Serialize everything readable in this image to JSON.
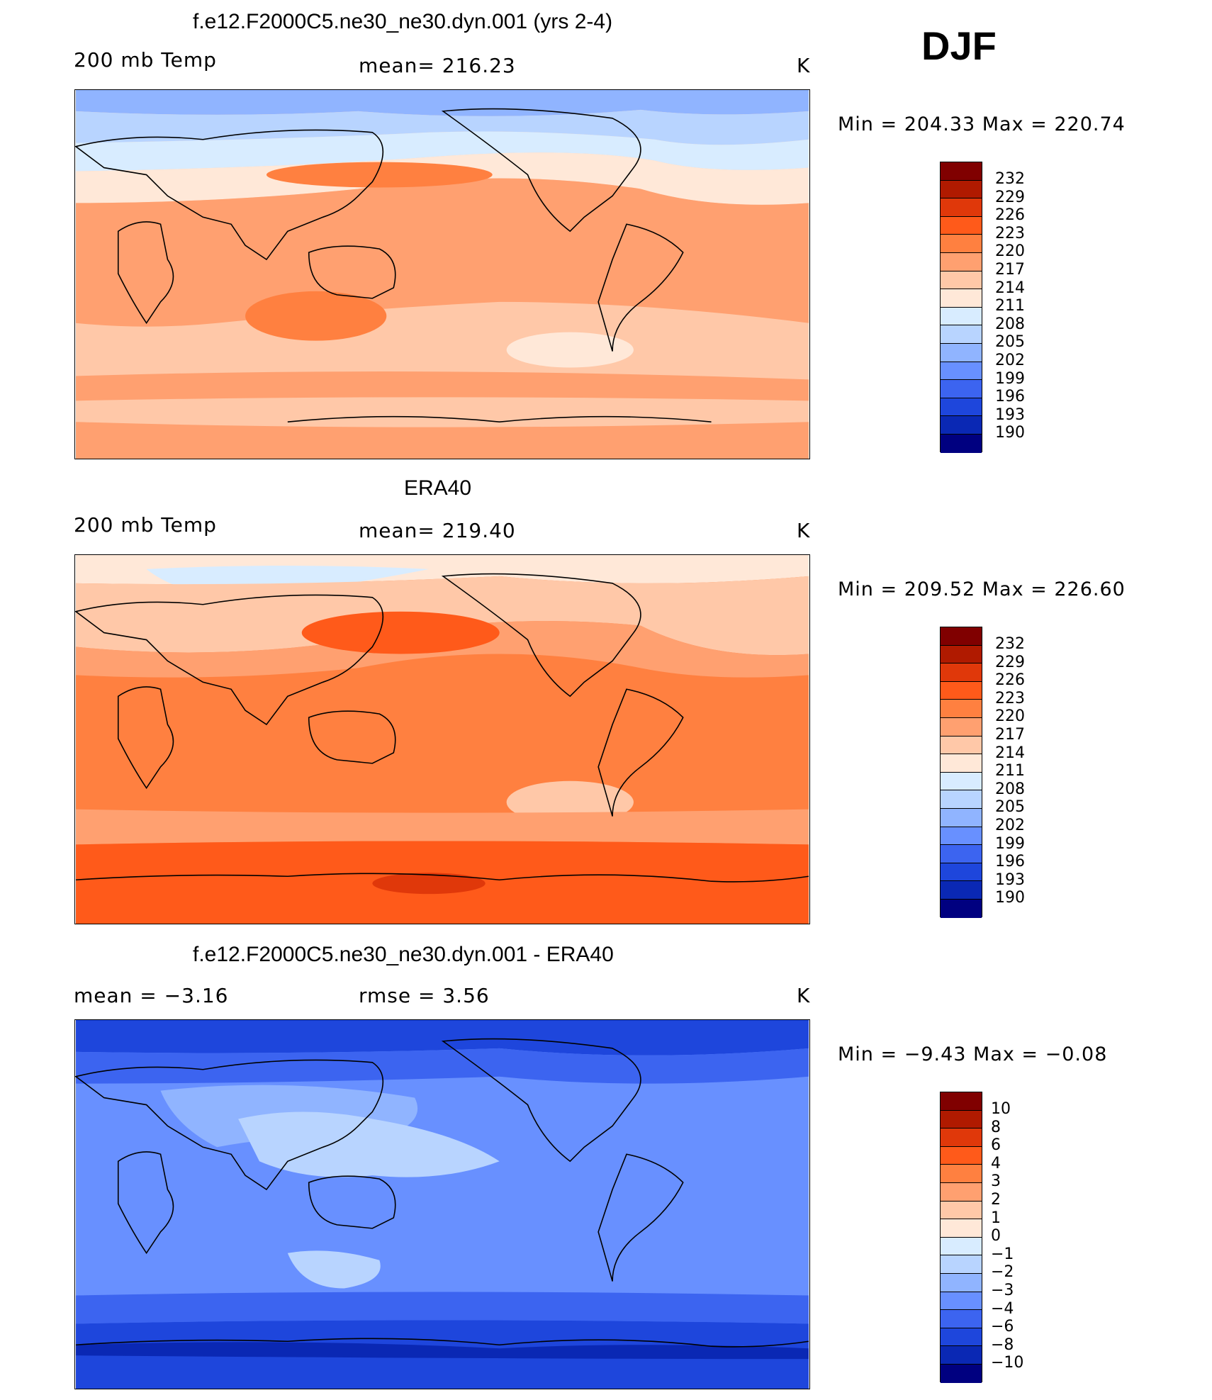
{
  "season": "DJF",
  "panels": [
    {
      "id": "model",
      "title": "f.e12.F2000C5.ne30_ne30.dyn.001 (yrs 2-4)",
      "left_label": "200 mb Temp",
      "center_label": "mean=  216.23",
      "right_label": "K",
      "minmax": "Min  =  204.33  Max  =  220.74",
      "colorbar_labels": [
        "232",
        "229",
        "226",
        "223",
        "220",
        "217",
        "214",
        "211",
        "208",
        "205",
        "202",
        "199",
        "196",
        "193",
        "190"
      ]
    },
    {
      "id": "obs",
      "title": "ERA40",
      "left_label": "200 mb Temp",
      "center_label": "mean=  219.40",
      "right_label": "K",
      "minmax": "Min  =  209.52  Max  =  226.60",
      "colorbar_labels": [
        "232",
        "229",
        "226",
        "223",
        "220",
        "217",
        "214",
        "211",
        "208",
        "205",
        "202",
        "199",
        "196",
        "193",
        "190"
      ]
    },
    {
      "id": "diff",
      "title": "f.e12.F2000C5.ne30_ne30.dyn.001 - ERA40",
      "left_label": "mean  =     −3.16",
      "center_label": "rmse  =      3.56",
      "right_label": "K",
      "minmax": "Min  =    −9.43  Max  =    −0.08",
      "colorbar_labels": [
        "10",
        "8",
        "6",
        "4",
        "3",
        "2",
        "1",
        "0",
        "−1",
        "−2",
        "−3",
        "−4",
        "−6",
        "−8",
        "−10"
      ]
    }
  ],
  "colors": {
    "palette": [
      "#800000",
      "#b01a00",
      "#e0380a",
      "#ff5a1a",
      "#ff8040",
      "#ffa070",
      "#ffc8a8",
      "#ffe8d8",
      "#d8ecff",
      "#b8d4ff",
      "#90b4ff",
      "#6890ff",
      "#3c64f0",
      "#1e46dc",
      "#0a28b4",
      "#000080"
    ]
  }
}
